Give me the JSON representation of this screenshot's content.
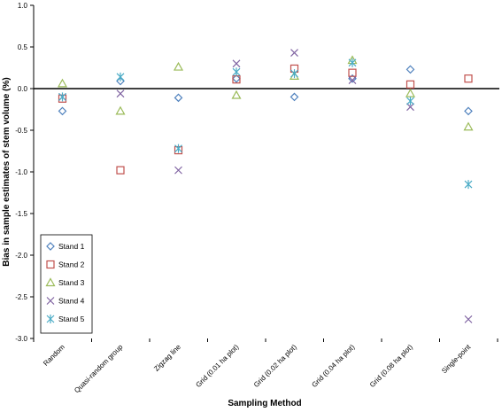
{
  "chart_data": {
    "type": "scatter",
    "title": "",
    "xlabel": "Sampling Method",
    "ylabel": "Bias in sample estimates of stem volume (%)",
    "ylim": [
      -3.0,
      1.0
    ],
    "yticks": [
      "1.0",
      "0.5",
      "0.0",
      "-0.5",
      "-1.0",
      "-1.5",
      "-2.0",
      "-2.5",
      "-3.0"
    ],
    "ytick_values": [
      1.0,
      0.5,
      0.0,
      -0.5,
      -1.0,
      -1.5,
      -2.0,
      -2.5,
      -3.0
    ],
    "categories": [
      "Random",
      "Quasi-random group",
      "Zigzag line",
      "Grid (0.01 ha plot)",
      "Grid (0.02 ha plot)",
      "Grid (0.04 ha plot)",
      "Grid (0.08 ha plot)",
      "Single-point"
    ],
    "grid": false,
    "legend_position": "bottom-left",
    "series": [
      {
        "name": "Stand 1",
        "marker": "diamond",
        "color": "#4F81BD",
        "values": [
          -0.27,
          0.09,
          -0.11,
          0.12,
          -0.1,
          0.12,
          0.23,
          -0.27
        ]
      },
      {
        "name": "Stand 2",
        "marker": "square",
        "color": "#C0504D",
        "values": [
          -0.12,
          -0.98,
          -0.74,
          0.11,
          0.24,
          0.19,
          0.05,
          0.12
        ]
      },
      {
        "name": "Stand 3",
        "marker": "triangle",
        "color": "#9BBB59",
        "values": [
          0.06,
          -0.27,
          0.26,
          -0.08,
          0.15,
          0.34,
          -0.06,
          -0.46
        ]
      },
      {
        "name": "Stand 4",
        "marker": "x",
        "color": "#8064A2",
        "values": [
          -0.1,
          -0.06,
          -0.98,
          0.3,
          0.43,
          0.1,
          -0.22,
          -2.77
        ]
      },
      {
        "name": "Stand 5",
        "marker": "star",
        "color": "#4BACC6",
        "values": [
          -0.1,
          0.14,
          -0.72,
          0.2,
          0.18,
          0.31,
          -0.15,
          -1.15
        ]
      }
    ]
  }
}
